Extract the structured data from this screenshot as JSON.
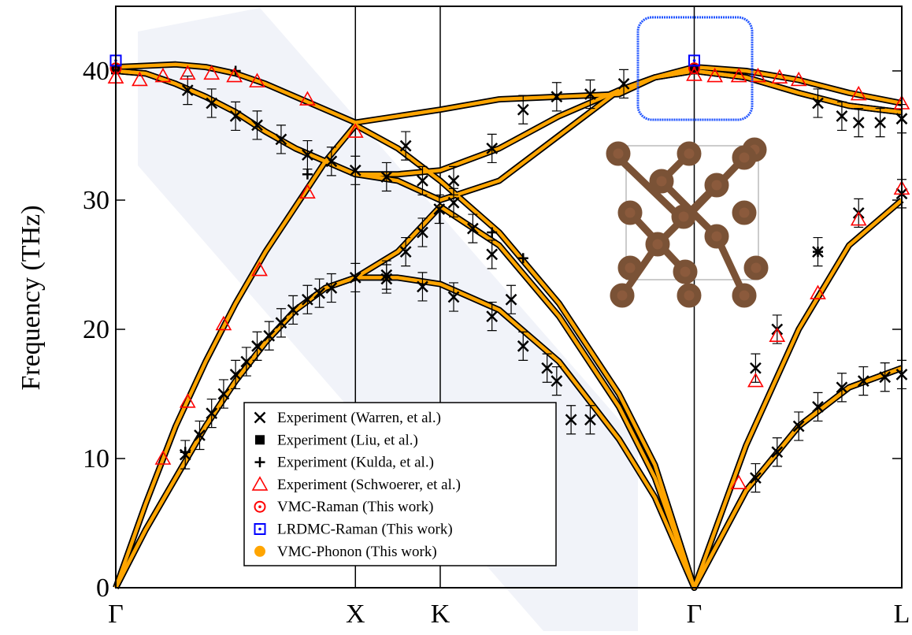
{
  "chart_data": {
    "type": "line",
    "y_label": "Frequency (THz)",
    "xlim": [
      0,
      3.28
    ],
    "xticks": [
      {
        "value": 0,
        "label": "Γ"
      },
      {
        "value": 1,
        "label": "X"
      },
      {
        "value": 1.354,
        "label": "K"
      },
      {
        "value": 2.414,
        "label": "Γ"
      },
      {
        "value": 3.28,
        "label": "L"
      }
    ],
    "ylim": [
      0,
      45
    ],
    "yticks": [
      0,
      10,
      20,
      30,
      40
    ],
    "series": [
      {
        "name": "Experiment (Warren, et al.)",
        "type": "scatter",
        "marker": "x",
        "color": "#000000",
        "error": 1.1,
        "x": [
          0.29,
          0.35,
          0.4,
          0.45,
          0.5,
          0.545,
          0.59,
          0.64,
          0.69,
          0.74,
          0.8,
          0.85,
          0.9,
          1.0,
          1.13,
          1.21,
          1.28,
          1.35,
          1.41,
          1.49,
          1.57,
          1.65,
          1.8,
          1.9,
          1.13,
          1.28,
          1.41,
          1.57,
          1.7,
          1.84,
          1.98,
          0.3,
          0.4,
          0.5,
          0.59,
          0.69,
          0.8,
          0.9,
          1.0,
          1.13,
          1.28,
          1.41,
          1.21,
          1.57,
          1.7,
          1.84,
          1.98,
          2.12,
          2.67,
          2.76,
          2.85,
          2.93,
          3.03,
          3.12,
          3.21,
          3.28,
          2.67,
          2.76,
          2.93,
          3.1,
          3.28,
          2.93,
          3.03,
          3.1,
          3.19,
          3.28
        ],
        "values": [
          10.3,
          11.8,
          13.5,
          15,
          16.5,
          17.5,
          18.7,
          19.5,
          20.5,
          21.5,
          22.3,
          22.8,
          23.2,
          24,
          24.2,
          26,
          27.5,
          29.3,
          29.8,
          27.8,
          25.8,
          22.3,
          17,
          13,
          23.9,
          23.3,
          22.5,
          21,
          18.7,
          16,
          13,
          38.5,
          37.5,
          36.5,
          35.8,
          34.7,
          33.5,
          33,
          32.3,
          31.8,
          31.5,
          31.5,
          34.2,
          34,
          37,
          38,
          38.2,
          39,
          8.5,
          10.5,
          12.5,
          14,
          15.5,
          16,
          16.3,
          16.5,
          17,
          20,
          26,
          29,
          30.5,
          37.5,
          36.5,
          36,
          36,
          36.3
        ]
      },
      {
        "name": "Experiment (Liu, et al.)",
        "type": "scatter",
        "marker": "square",
        "color": "#000000",
        "x": [
          0,
          2.414
        ],
        "values": [
          40.1,
          40.1
        ]
      },
      {
        "name": "Experiment (Kulda, et al.)",
        "type": "scatter",
        "marker": "plus",
        "color": "#000000",
        "x": [
          0.29,
          0.5,
          0.8,
          1.57,
          1.7,
          2.93
        ],
        "values": [
          10.5,
          40,
          32,
          27.5,
          25.5,
          26
        ]
      },
      {
        "name": "Experiment (Schwoerer, et al.)",
        "type": "scatter",
        "marker": "triangle",
        "color": "#ff0000",
        "x": [
          0,
          0.1,
          0.197,
          0.3,
          0.4,
          0.495,
          0.59,
          0.8,
          1.0,
          0.197,
          0.3,
          0.45,
          0.6,
          0.8,
          2.414,
          2.5,
          2.6,
          2.68,
          2.77,
          2.85,
          3.1,
          3.28,
          2.6,
          2.67,
          2.76,
          2.93,
          3.1,
          3.28
        ],
        "values": [
          39.5,
          39.3,
          39.6,
          39.8,
          39.8,
          39.6,
          39.2,
          37.8,
          35.3,
          10,
          14.4,
          20.4,
          24.6,
          30.6,
          39.7,
          39.6,
          39.6,
          39.6,
          39.5,
          39.3,
          38.2,
          37.5,
          8.1,
          16,
          19.5,
          22.8,
          28.5,
          30.9
        ]
      },
      {
        "name": "VMC-Raman (This work)",
        "type": "scatter",
        "marker": "circle-dot",
        "color": "#ff0000",
        "x": [
          0,
          2.414
        ],
        "values": [
          40.2,
          40.2
        ]
      },
      {
        "name": "LRDMC-Raman (This work)",
        "type": "scatter",
        "marker": "square-dot",
        "color": "#0000ff",
        "x": [
          0,
          2.414
        ],
        "values": [
          40.8,
          40.8
        ]
      },
      {
        "name": "VMC-Phonon (This work)",
        "type": "line",
        "marker": "disc",
        "color": "#ffa500",
        "x": [
          0,
          0.125,
          0.25,
          0.375,
          0.5,
          0.625,
          0.75,
          0.875,
          1,
          1.177,
          1.354,
          1.6,
          1.85,
          2.1,
          2.25,
          2.414,
          2.63,
          2.85,
          3.06,
          3.28
        ],
        "bands": [
          [
            0,
            4.5,
            8.5,
            12.5,
            16,
            19,
            21.5,
            23.2,
            24,
            24,
            23.5,
            21.5,
            17.5,
            11.5,
            7,
            0,
            7.5,
            12.5,
            15.5,
            17
          ],
          [
            0,
            4.5,
            8.5,
            12.5,
            16,
            19,
            21.5,
            23.2,
            24,
            26,
            29.5,
            26.5,
            21,
            14,
            8.5,
            0,
            7.5,
            12.5,
            15.5,
            17
          ],
          [
            0,
            6.5,
            12.5,
            17.5,
            22,
            26,
            29.5,
            33,
            35.8,
            34,
            31.5,
            27.5,
            22,
            15,
            9.5,
            0,
            11,
            20,
            26.5,
            30
          ],
          [
            40,
            39.8,
            39,
            38,
            36.8,
            35.3,
            34,
            33,
            32,
            32,
            32.3,
            34,
            36.5,
            38.5,
            39.5,
            40,
            39.5,
            38.3,
            37.3,
            36.8
          ],
          [
            40,
            39.8,
            39,
            38,
            36.8,
            35.3,
            34,
            33,
            32,
            31.5,
            30,
            31.5,
            35,
            38.5,
            39.5,
            40,
            39.5,
            38.3,
            37.3,
            36.8
          ],
          [
            40.3,
            40.4,
            40.5,
            40.3,
            39.8,
            39,
            38,
            37,
            36,
            36.5,
            37,
            37.8,
            38,
            38.2,
            39.5,
            40.3,
            40,
            39.3,
            38.3,
            37.5
          ]
        ]
      }
    ]
  }
}
